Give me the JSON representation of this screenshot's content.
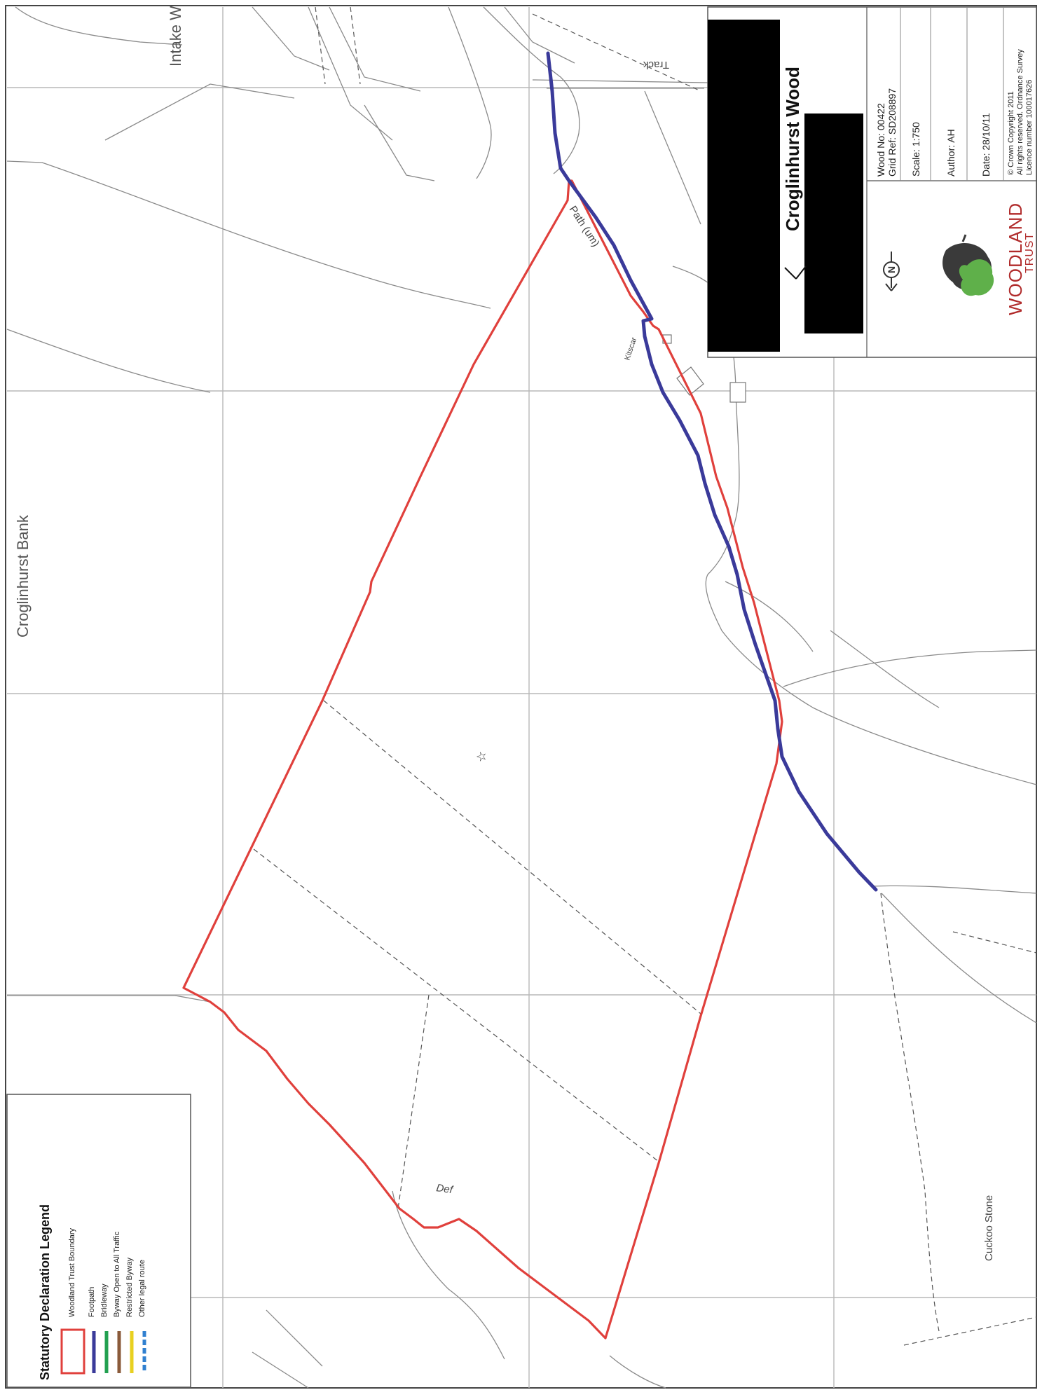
{
  "map": {
    "title": "Croglinhurst Wood",
    "labels": {
      "intake": "Intake W",
      "bank": "Croglinhurst Bank",
      "track": "Track",
      "path_um": "Path (um)",
      "kitscar": "Kitscar",
      "def": "Def",
      "cuckoo_stone": "Cuckoo Stone"
    }
  },
  "info_box": {
    "wood_no": "Wood No:  00422",
    "grid_ref": "Grid Ref:  SD208897",
    "scale": "Scale: 1:750",
    "author": "Author: AH",
    "date": "Date: 28/10/11",
    "copyright_line1": "© Crown Copyright 2011",
    "copyright_line2": "All rights reserved. Ordnance Survey",
    "copyright_line3": "Licence number 100017626",
    "north_label": "N",
    "logo_word1": "WOODLAND",
    "logo_word2": "TRUST"
  },
  "legend": {
    "title": "Statutory Declaration Legend",
    "items": [
      {
        "label": "Woodland Trust Boundary",
        "color": "#e0403c",
        "style": "box"
      },
      {
        "label": "Footpath",
        "color": "#3a3a9a",
        "style": "line"
      },
      {
        "label": "Bridleway",
        "color": "#22a050",
        "style": "line"
      },
      {
        "label": "Byway Open to All Traffic",
        "color": "#8a5a3a",
        "style": "line"
      },
      {
        "label": "Restricted Byway",
        "color": "#e8d020",
        "style": "line"
      },
      {
        "label": "Other legal route",
        "color": "#3080d0",
        "style": "dashed"
      }
    ]
  },
  "colors": {
    "boundary": "#e0403c",
    "footpath": "#3a3a9a",
    "grid": "#b8b8b8",
    "feature": "#8a8a8a",
    "redaction": "#000000",
    "logo_red": "#b02a2a",
    "logo_green": "#5fb04a"
  }
}
